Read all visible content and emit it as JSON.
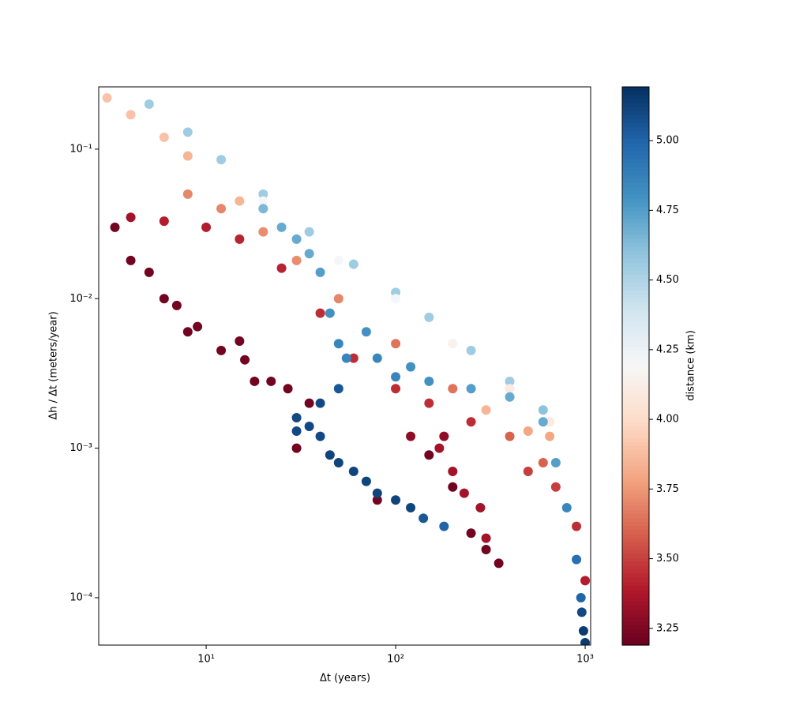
{
  "chart_data": {
    "type": "scatter",
    "xlabel": "Δt (years)",
    "ylabel": "Δh / Δt (meters/year)",
    "colorbar_label": "distance (km)",
    "xscale": "log",
    "yscale": "log",
    "xlim": [
      2.71,
      1069
    ],
    "ylim": [
      4.82e-05,
      0.261
    ],
    "xticks": [
      {
        "value": 10,
        "label": "10¹"
      },
      {
        "value": 100,
        "label": "10²"
      },
      {
        "value": 1000,
        "label": "10³"
      }
    ],
    "yticks": [
      {
        "value": 0.0001,
        "label": "10⁻⁴"
      },
      {
        "value": 0.001,
        "label": "10⁻³"
      },
      {
        "value": 0.01,
        "label": "10⁻²"
      },
      {
        "value": 0.1,
        "label": "10⁻¹"
      }
    ],
    "clim": [
      3.19,
      5.193
    ],
    "cticks": [
      3.25,
      {
        "value": 3.5,
        "label": "3.50"
      },
      3.75,
      {
        "value": 4.0,
        "label": "4.00"
      },
      4.25,
      {
        "value": 4.5,
        "label": "4.50"
      },
      4.75,
      {
        "value": 5.0,
        "label": "5.00"
      }
    ],
    "colormap": [
      "#67001f",
      "#b2182b",
      "#d6604d",
      "#f4a582",
      "#fddbc7",
      "#f7f7f7",
      "#d1e5f0",
      "#92c5de",
      "#4393c3",
      "#2166ac",
      "#053061"
    ],
    "x": [
      5,
      8,
      12,
      20,
      35,
      60,
      100,
      150,
      250,
      400,
      600,
      20,
      50,
      100,
      200,
      400,
      650,
      3,
      4,
      6,
      8,
      15,
      300,
      500,
      650,
      8,
      12,
      20,
      30,
      50,
      100,
      200,
      400,
      600,
      4,
      6,
      10,
      15,
      25,
      40,
      60,
      100,
      150,
      250,
      500,
      700,
      900,
      1000,
      3.3,
      4,
      5,
      6,
      7,
      8,
      9,
      12,
      15,
      16,
      18,
      22,
      27,
      30,
      35,
      80,
      150,
      200,
      250,
      300,
      350,
      180,
      120,
      170,
      200,
      230,
      280,
      300,
      40,
      45,
      50,
      55,
      70,
      80,
      100,
      120,
      150,
      250,
      400,
      600,
      700,
      800,
      900,
      950,
      30,
      30,
      35,
      40,
      45,
      50,
      60,
      70,
      80,
      100,
      120,
      140,
      180,
      40,
      50,
      1000,
      980,
      960,
      25,
      30,
      35,
      20
    ],
    "y": [
      0.2,
      0.13,
      0.085,
      0.05,
      0.028,
      0.017,
      0.011,
      0.0075,
      0.0045,
      0.0028,
      0.0018,
      0.045,
      0.018,
      0.01,
      0.005,
      0.0025,
      0.0015,
      0.22,
      0.17,
      0.12,
      0.09,
      0.045,
      0.0018,
      0.0013,
      0.0012,
      0.05,
      0.04,
      0.028,
      0.018,
      0.01,
      0.005,
      0.0025,
      0.0012,
      0.0008,
      0.035,
      0.033,
      0.03,
      0.025,
      0.016,
      0.008,
      0.004,
      0.0025,
      0.002,
      0.0015,
      0.0007,
      0.00055,
      0.0003,
      0.00013,
      0.03,
      0.018,
      0.015,
      0.01,
      0.009,
      0.006,
      0.0065,
      0.0045,
      0.0052,
      0.0039,
      0.0028,
      0.0028,
      0.0025,
      0.001,
      0.002,
      0.00045,
      0.0009,
      0.00055,
      0.00027,
      0.00021,
      0.00017,
      0.0012,
      0.0012,
      0.001,
      0.0007,
      0.0005,
      0.0004,
      0.00025,
      0.015,
      0.008,
      0.005,
      0.004,
      0.006,
      0.004,
      0.003,
      0.0035,
      0.0028,
      0.0025,
      0.0022,
      0.0015,
      0.0008,
      0.0004,
      0.00018,
      0.0001,
      0.0016,
      0.0013,
      0.0014,
      0.0012,
      0.0009,
      0.0008,
      0.0007,
      0.0006,
      0.0005,
      0.00045,
      0.0004,
      0.00034,
      0.0003,
      0.002,
      0.0025,
      5e-05,
      6e-05,
      8e-05,
      0.03,
      0.025,
      0.02,
      0.04
    ],
    "c": [
      4.55,
      4.55,
      4.55,
      4.55,
      4.55,
      4.55,
      4.55,
      4.55,
      4.55,
      4.55,
      4.6,
      4.2,
      4.2,
      4.2,
      4.15,
      4.1,
      4.1,
      3.9,
      3.9,
      3.9,
      3.85,
      3.85,
      3.85,
      3.8,
      3.8,
      3.7,
      3.7,
      3.72,
      3.72,
      3.7,
      3.65,
      3.65,
      3.6,
      3.6,
      3.35,
      3.4,
      3.4,
      3.42,
      3.42,
      3.45,
      3.45,
      3.45,
      3.45,
      3.45,
      3.5,
      3.5,
      3.45,
      3.4,
      3.22,
      3.22,
      3.22,
      3.22,
      3.22,
      3.22,
      3.22,
      3.22,
      3.22,
      3.22,
      3.22,
      3.22,
      3.22,
      3.22,
      3.22,
      3.22,
      3.22,
      3.22,
      3.22,
      3.22,
      3.22,
      3.3,
      3.3,
      3.35,
      3.35,
      3.35,
      3.35,
      3.35,
      4.75,
      4.8,
      4.85,
      4.85,
      4.8,
      4.85,
      4.85,
      4.8,
      4.8,
      4.75,
      4.7,
      4.7,
      4.75,
      4.85,
      4.95,
      5.0,
      5.1,
      5.1,
      5.1,
      5.1,
      5.12,
      5.12,
      5.12,
      5.12,
      5.12,
      5.12,
      5.12,
      5.05,
      5.0,
      5.1,
      5.05,
      5.15,
      5.15,
      5.1,
      4.7,
      4.7,
      4.7,
      4.65
    ]
  }
}
